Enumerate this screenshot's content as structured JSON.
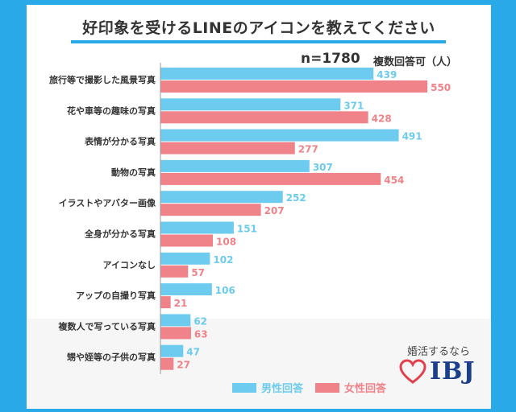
{
  "title": "好印象を受けるLINEのアイコンを教えてください",
  "sample": {
    "n": "n=1780",
    "note": "複数回答可（人）"
  },
  "legend": {
    "male": "男性回答",
    "female": "女性回答"
  },
  "logo": {
    "tagline": "婚活するなら",
    "brand": "IBJ"
  },
  "colors": {
    "male": "#6ccbee",
    "female": "#f08389",
    "background": "#2aa9e8"
  },
  "chart_data": {
    "type": "bar",
    "orientation": "horizontal",
    "title": "好印象を受けるLINEのアイコンを教えてください",
    "categories": [
      "旅行等で撮影した風景写真",
      "花や車等の趣味の写真",
      "表情が分かる写真",
      "動物の写真",
      "イラストやアバター画像",
      "全身が分かる写真",
      "アイコンなし",
      "アップの自撮り写真",
      "複数人で写っている写真",
      "甥や姪等の子供の写真"
    ],
    "series": [
      {
        "name": "男性回答",
        "values": [
          439,
          371,
          491,
          307,
          252,
          151,
          102,
          106,
          62,
          47
        ]
      },
      {
        "name": "女性回答",
        "values": [
          550,
          428,
          277,
          454,
          207,
          108,
          57,
          21,
          63,
          27
        ]
      }
    ],
    "xlim": [
      0,
      600
    ],
    "grid": false,
    "legend_position": "bottom"
  }
}
